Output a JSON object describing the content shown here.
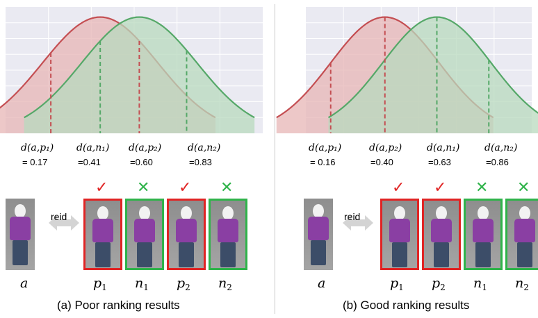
{
  "panels": [
    {
      "id": "a",
      "caption": "(a)  Poor ranking results",
      "red_curve": {
        "mean": 0.41,
        "sd": 0.28,
        "range": [
          0.0,
          1.5
        ]
      },
      "green_curve": {
        "mean": 0.6,
        "sd": 0.28,
        "range": [
          0.0,
          1.5
        ]
      },
      "distances": [
        {
          "label": "d(a,p₁)",
          "value": "= 0.17",
          "x": 0.17,
          "color": "#c44e52"
        },
        {
          "label": "d(a,n₁)",
          "value": "=0.41",
          "x": 0.41,
          "color": "#55a868"
        },
        {
          "label": "d(a,p₂)",
          "value": "=0.60",
          "x": 0.6,
          "color": "#c44e52"
        },
        {
          "label": "d(a,n₂)",
          "value": "=0.83",
          "x": 0.83,
          "color": "#55a868"
        }
      ],
      "query_symbol": "a",
      "reid_label": "reid",
      "gallery": [
        {
          "symbol": "p",
          "sub": "1",
          "mark": "✓",
          "frame": "red"
        },
        {
          "symbol": "n",
          "sub": "1",
          "mark": "✕",
          "frame": "green"
        },
        {
          "symbol": "p",
          "sub": "2",
          "mark": "✓",
          "frame": "red"
        },
        {
          "symbol": "n",
          "sub": "2",
          "mark": "✕",
          "frame": "green"
        }
      ]
    },
    {
      "id": "b",
      "caption": "(b)  Good ranking results",
      "red_curve": {
        "mean": 0.4,
        "sd": 0.24,
        "range": [
          0.0,
          1.5
        ]
      },
      "green_curve": {
        "mean": 0.63,
        "sd": 0.24,
        "range": [
          0.0,
          1.5
        ]
      },
      "distances": [
        {
          "label": "d(a,p₁)",
          "value": "= 0.16",
          "x": 0.16,
          "color": "#c44e52"
        },
        {
          "label": "d(a,p₂)",
          "value": "=0.40",
          "x": 0.4,
          "color": "#c44e52"
        },
        {
          "label": "d(a,n₁)",
          "value": "=0.63",
          "x": 0.63,
          "color": "#55a868"
        },
        {
          "label": "d(a,n₂)",
          "value": "=0.86",
          "x": 0.86,
          "color": "#55a868"
        }
      ],
      "query_symbol": "a",
      "reid_label": "reid",
      "gallery": [
        {
          "symbol": "p",
          "sub": "1",
          "mark": "✓",
          "frame": "red"
        },
        {
          "symbol": "p",
          "sub": "2",
          "mark": "✓",
          "frame": "red"
        },
        {
          "symbol": "n",
          "sub": "1",
          "mark": "✕",
          "frame": "green"
        },
        {
          "symbol": "n",
          "sub": "2",
          "mark": "✕",
          "frame": "green"
        }
      ]
    }
  ],
  "colors": {
    "red": "#c44e52",
    "green": "#55a868",
    "red_fill": "#e7b5b6",
    "green_fill": "#b8d9be",
    "plot_bg": "#eaeaf2",
    "check": "#e02424",
    "cross": "#2fb34a"
  }
}
